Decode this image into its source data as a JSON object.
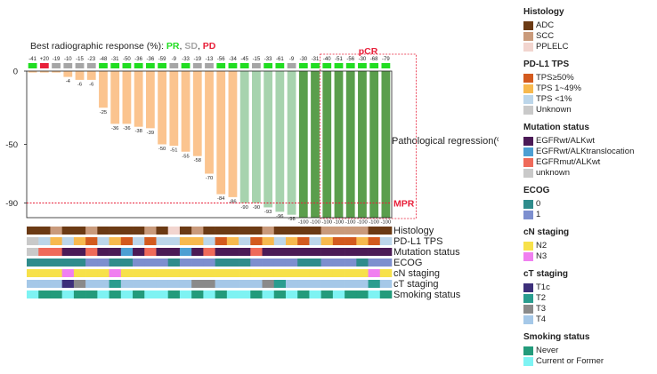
{
  "chart_data": {
    "type": "bar",
    "header_prefix": "Best radiographic response (%): ",
    "header_parts": [
      {
        "text": "PR",
        "color": "#22dd22"
      },
      {
        "text": ", ",
        "color": "#222222"
      },
      {
        "text": "SD",
        "color": "#a6a6a6"
      },
      {
        "text": ", ",
        "color": "#222222"
      },
      {
        "text": "PD",
        "color": "#e8203a"
      }
    ],
    "ylabel": "Pathological regression(%)",
    "ylim": [
      -100,
      0
    ],
    "y_ticks": [
      "0",
      "-50",
      "-90"
    ],
    "y_tick_values": [
      0,
      -50,
      -90
    ],
    "threshold": {
      "value": -90,
      "label": "MPR",
      "color": "#e8203a"
    },
    "pcr_label": "pCR",
    "pcr_range": [
      25,
      33
    ],
    "radiographic_response": [
      "-41",
      "+20",
      "-19",
      "-10",
      "-15",
      "-23",
      "-48",
      "-31",
      "-50",
      "-36",
      "-36",
      "-59",
      "-9",
      "-33",
      "-19",
      "-13",
      "-56",
      "-34",
      "-45",
      "-15",
      "-33",
      "-61",
      "-9",
      "-30",
      "-31",
      "-40",
      "-51",
      "-56",
      "-30",
      "-68",
      "-79"
    ],
    "response_category": [
      "PR",
      "PD",
      "SD",
      "SD",
      "SD",
      "SD",
      "PR",
      "PR",
      "PR",
      "PR",
      "PR",
      "PR",
      "SD",
      "PR",
      "SD",
      "SD",
      "PR",
      "PR",
      "PR",
      "SD",
      "PR",
      "PR",
      "SD",
      "PR",
      "PR",
      "PR",
      "PR",
      "PR",
      "PR",
      "PR",
      "PR"
    ],
    "response_colors": {
      "PR": "#22dd22",
      "SD": "#a6a6a6",
      "PD": "#e8203a"
    },
    "values": [
      -1,
      -1,
      -1,
      -4,
      -6,
      -6,
      -25,
      -36,
      -36,
      -38,
      -39,
      -50,
      -51,
      -55,
      -58,
      -70,
      -84,
      -86,
      -90,
      -90,
      -93,
      -96,
      -98,
      -100,
      -100,
      -100,
      -100,
      -100,
      -100,
      -100,
      -100
    ],
    "value_labels": [
      "",
      "",
      "",
      "-4",
      "-6",
      "-6",
      "-25",
      "-36",
      "-36",
      "-38",
      "-39",
      "-50",
      "-51",
      "-55",
      "-58",
      "-70",
      "-84",
      "-86",
      "-90",
      "-90",
      "-93",
      "-96",
      "-98",
      "-100",
      "-100",
      "-100",
      "-100",
      "-100",
      "-100",
      "-100",
      "-100"
    ],
    "bar_colors": {
      "non_mpr": "#fbc48f",
      "mpr": "#a7d3ae",
      "pcr": "#5a9e4c"
    },
    "tracks": [
      {
        "name": "Histology",
        "values": [
          "ADC",
          "ADC",
          "SCC",
          "ADC",
          "ADC",
          "SCC",
          "ADC",
          "ADC",
          "ADC",
          "ADC",
          "SCC",
          "ADC",
          "PPLELC",
          "ADC",
          "SCC",
          "ADC",
          "ADC",
          "ADC",
          "ADC",
          "ADC",
          "SCC",
          "ADC",
          "ADC",
          "ADC",
          "ADC",
          "SCC",
          "SCC",
          "SCC",
          "SCC",
          "ADC",
          "ADC"
        ]
      },
      {
        "name": "PD-L1 TPS",
        "values": [
          "Unknown",
          "TPS <1%",
          "TPS 1~49%",
          "TPS <1%",
          "TPS 1~49%",
          "TPS ≥50%",
          "TPS <1%",
          "TPS 1~49%",
          "TPS ≥50%",
          "TPS <1%",
          "TPS ≥50%",
          "TPS <1%",
          "TPS <1%",
          "TPS 1~49%",
          "TPS 1~49%",
          "TPS <1%",
          "TPS ≥50%",
          "TPS 1~49%",
          "TPS <1%",
          "TPS ≥50%",
          "TPS 1~49%",
          "TPS <1%",
          "TPS 1~49%",
          "TPS ≥50%",
          "TPS <1%",
          "TPS 1~49%",
          "TPS ≥50%",
          "TPS ≥50%",
          "TPS 1~49%",
          "TPS ≥50%",
          "TPS <1%"
        ]
      },
      {
        "name": "Mutation status",
        "values": [
          "unknown",
          "EGFRmut/ALKwt",
          "EGFRmut/ALKwt",
          "EGFRwt/ALKwt",
          "EGFRwt/ALKwt",
          "EGFRmut/ALKwt",
          "EGFRwt/ALKwt",
          "EGFRwt/ALKwt",
          "EGFRwt/ALKtranslocation",
          "EGFRwt/ALKwt",
          "EGFRmut/ALKwt",
          "EGFRwt/ALKwt",
          "EGFRwt/ALKwt",
          "EGFRwt/ALKtranslocation",
          "EGFRwt/ALKwt",
          "EGFRmut/ALKwt",
          "EGFRwt/ALKwt",
          "EGFRwt/ALKwt",
          "EGFRwt/ALKwt",
          "EGFRmut/ALKwt",
          "EGFRwt/ALKwt",
          "EGFRwt/ALKwt",
          "EGFRwt/ALKwt",
          "EGFRwt/ALKwt",
          "EGFRwt/ALKwt",
          "EGFRwt/ALKwt",
          "EGFRwt/ALKwt",
          "EGFRwt/ALKwt",
          "EGFRwt/ALKwt",
          "EGFRwt/ALKwt",
          "EGFRwt/ALKwt"
        ]
      },
      {
        "name": "ECOG",
        "values": [
          "0",
          "0",
          "0",
          "0",
          "0",
          "1",
          "1",
          "0",
          "0",
          "1",
          "1",
          "1",
          "0",
          "1",
          "1",
          "1",
          "0",
          "0",
          "0",
          "1",
          "1",
          "1",
          "1",
          "0",
          "0",
          "1",
          "1",
          "1",
          "0",
          "1",
          "1"
        ]
      },
      {
        "name": "cN staging",
        "values": [
          "N2",
          "N2",
          "N2",
          "N3",
          "N2",
          "N2",
          "N2",
          "N3",
          "N2",
          "N2",
          "N2",
          "N2",
          "N2",
          "N2",
          "N2",
          "N2",
          "N2",
          "N2",
          "N2",
          "N2",
          "N2",
          "N2",
          "N2",
          "N2",
          "N2",
          "N2",
          "N2",
          "N2",
          "N2",
          "N3",
          "N2"
        ]
      },
      {
        "name": "cT staging",
        "values": [
          "T4",
          "T4",
          "T4",
          "T1c",
          "T3",
          "T4",
          "T4",
          "T2",
          "T4",
          "T4",
          "T4",
          "T4",
          "T4",
          "T4",
          "T3",
          "T3",
          "T4",
          "T4",
          "T4",
          "T4",
          "T3",
          "T2",
          "T4",
          "T4",
          "T4",
          "T4",
          "T4",
          "T4",
          "T4",
          "T2",
          "T4"
        ]
      },
      {
        "name": "Smoking status",
        "values": [
          "Current or Former",
          "Never",
          "Never",
          "Current or Former",
          "Never",
          "Never",
          "Current or Former",
          "Never",
          "Current or Former",
          "Never",
          "Current or Former",
          "Current or Former",
          "Never",
          "Current or Former",
          "Never",
          "Current or Former",
          "Never",
          "Current or Former",
          "Current or Former",
          "Never",
          "Current or Former",
          "Never",
          "Current or Former",
          "Never",
          "Current or Former",
          "Never",
          "Current or Former",
          "Never",
          "Never",
          "Current or Former",
          "Never"
        ]
      }
    ]
  },
  "legend": [
    {
      "title": "Histology",
      "items": [
        {
          "label": "ADC",
          "color": "#6b3a14"
        },
        {
          "label": "SCC",
          "color": "#c99a7b"
        },
        {
          "label": "PPLELC",
          "color": "#f2d5cf"
        }
      ]
    },
    {
      "title": "PD-L1 TPS",
      "items": [
        {
          "label": "TPS≥50%",
          "color": "#d35a1e"
        },
        {
          "label": "TPS 1~49%",
          "color": "#f7b94e"
        },
        {
          "label": "TPS <1%",
          "color": "#bcd6ea"
        },
        {
          "label": "Unknown",
          "color": "#c9c9c9"
        }
      ]
    },
    {
      "title": "Mutation status",
      "items": [
        {
          "label": "EGFRwt/ALKwt",
          "color": "#4b1a56"
        },
        {
          "label": "EGFRwt/ALKtranslocation",
          "color": "#4d9fd3"
        },
        {
          "label": "EGFRmut/ALKwt",
          "color": "#ef6a5a"
        },
        {
          "label": "unknown",
          "color": "#c9c9c9"
        }
      ]
    },
    {
      "title": "ECOG",
      "items": [
        {
          "label": "0",
          "color": "#2f8c8c"
        },
        {
          "label": "1",
          "color": "#7d8fcf"
        }
      ]
    },
    {
      "title": "cN staging",
      "items": [
        {
          "label": "N2",
          "color": "#f7e14a"
        },
        {
          "label": "N3",
          "color": "#f07ff0"
        }
      ]
    },
    {
      "title": "cT staging",
      "items": [
        {
          "label": "T1c",
          "color": "#3c2f7a"
        },
        {
          "label": "T2",
          "color": "#2a9d8f"
        },
        {
          "label": "T3",
          "color": "#8a8a8a"
        },
        {
          "label": "T4",
          "color": "#a5c8e8"
        }
      ]
    },
    {
      "title": "Smoking  status",
      "items": [
        {
          "label": "Never",
          "color": "#239b7b"
        },
        {
          "label": "Current or Former",
          "color": "#7ef3f3"
        }
      ]
    }
  ]
}
